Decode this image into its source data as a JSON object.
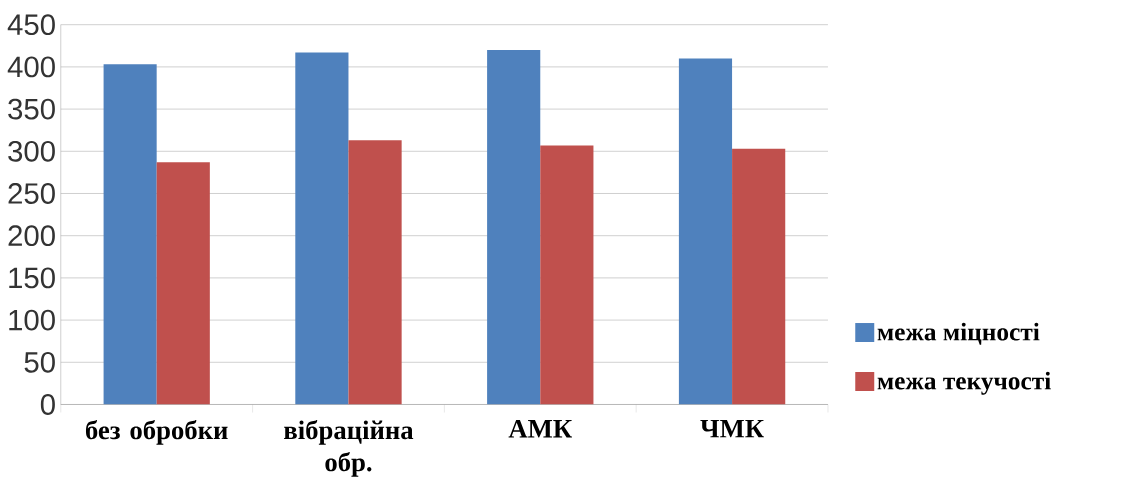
{
  "chart_data": {
    "type": "bar",
    "categories": [
      "без обробки",
      "вібраційна обр.",
      "АМК",
      "ЧМК"
    ],
    "series": [
      {
        "name": "межа міцності",
        "color": "#4f81bd",
        "values": [
          403,
          417,
          420,
          410
        ]
      },
      {
        "name": "межа текучості",
        "color": "#c0504d",
        "values": [
          287,
          313,
          307,
          303
        ]
      }
    ],
    "ylim": [
      0,
      450
    ],
    "yticks": [
      0,
      50,
      100,
      150,
      200,
      250,
      300,
      350,
      400,
      450
    ],
    "grid": "y",
    "legend": "right"
  }
}
